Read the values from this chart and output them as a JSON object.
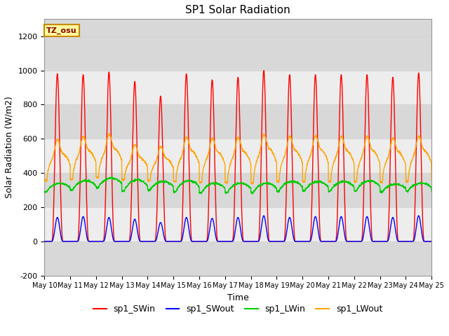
{
  "title": "SP1 Solar Radiation",
  "ylabel": "Solar Radiation (W/m2)",
  "xlabel": "Time",
  "ylim": [
    -200,
    1300
  ],
  "yticks": [
    -200,
    0,
    200,
    400,
    600,
    800,
    1000,
    1200
  ],
  "n_days": 15,
  "points_per_day": 144,
  "sw_in_peak": [
    980,
    975,
    990,
    935,
    850,
    980,
    945,
    960,
    1000,
    975,
    975,
    975,
    975,
    960,
    985
  ],
  "sw_out_peak": [
    140,
    145,
    140,
    130,
    110,
    140,
    135,
    140,
    150,
    140,
    145,
    145,
    145,
    140,
    150
  ],
  "lw_in_base": [
    290,
    300,
    315,
    295,
    300,
    290,
    285,
    285,
    285,
    295,
    295,
    295,
    295,
    290,
    295
  ],
  "lw_in_peak": [
    340,
    355,
    370,
    360,
    350,
    355,
    340,
    340,
    340,
    350,
    350,
    350,
    355,
    335,
    340
  ],
  "lw_out_base": [
    355,
    360,
    375,
    360,
    355,
    350,
    345,
    345,
    340,
    350,
    350,
    350,
    350,
    345,
    350
  ],
  "lw_out_peak": [
    520,
    540,
    550,
    495,
    490,
    535,
    530,
    535,
    550,
    540,
    545,
    540,
    540,
    530,
    540
  ],
  "color_sw_in": "#FF0000",
  "color_sw_out": "#0000FF",
  "color_lw_in": "#00CC00",
  "color_lw_out": "#FFA500",
  "legend_labels": [
    "sp1_SWin",
    "sp1_SWout",
    "sp1_LWin",
    "sp1_LWout"
  ],
  "tz_label": "TZ_osu",
  "x_tick_labels": [
    "May 10",
    "May 11",
    "May 12",
    "May 13",
    "May 14",
    "May 15",
    "May 16",
    "May 17",
    "May 18",
    "May 19",
    "May 20",
    "May 21",
    "May 22",
    "May 23",
    "May 24",
    "May 25"
  ],
  "bg_color": "#D8D8D8",
  "band_color": "#FFFFFF",
  "band_alpha": 0.5
}
